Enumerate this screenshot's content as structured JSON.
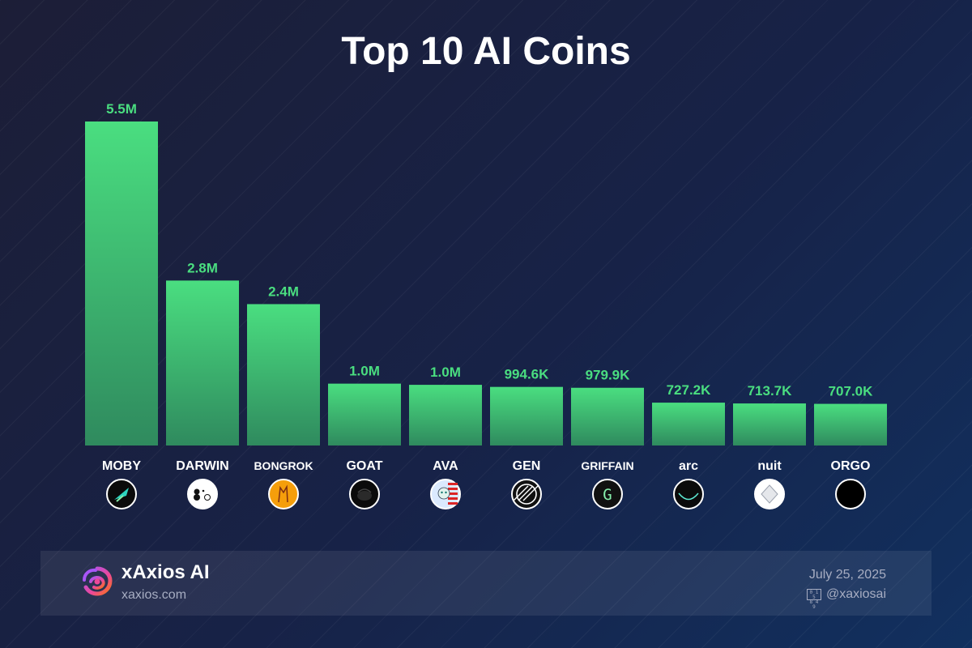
{
  "title": "Top 10 AI Coins",
  "chart_data": {
    "type": "bar",
    "title": "Top 10 AI Coins",
    "xlabel": "",
    "ylabel": "",
    "ylim": [
      0,
      5500000
    ],
    "grid": false,
    "categories": [
      "MOBY",
      "DARWIN",
      "BONGROK",
      "GOAT",
      "AVA",
      "GEN",
      "GRIFFAIN",
      "arc",
      "nuit",
      "ORGO"
    ],
    "values": [
      5500000,
      2800000,
      2400000,
      1050000,
      1030000,
      994600,
      979900,
      727200,
      713700,
      707000
    ],
    "value_labels": [
      "5.5M",
      "2.8M",
      "2.4M",
      "1.0M",
      "1.0M",
      "994.6K",
      "979.9K",
      "727.2K",
      "713.7K",
      "707.0K"
    ],
    "icons": [
      "moby-icon",
      "darwin-icon",
      "bongrok-icon",
      "goat-icon",
      "ava-icon",
      "gen-icon",
      "griffain-icon",
      "arc-icon",
      "nuit-icon",
      "orgo-icon"
    ],
    "bar_color_top": "#4ade80",
    "bar_color_bottom": "#2f8a5e",
    "value_label_color": "#4ade80"
  },
  "footer": {
    "brand": "xAxios AI",
    "url": "xaxios.com",
    "date": "July 25, 2025",
    "handle": "@xaxiosai",
    "x_glyph_text": "𝕏",
    "handle_icon": "x-logo-icon"
  },
  "colors": {
    "background_start": "#1c1e37",
    "background_end": "#11305f",
    "accent": "#4ade80",
    "muted_text": "#a7adc2"
  }
}
